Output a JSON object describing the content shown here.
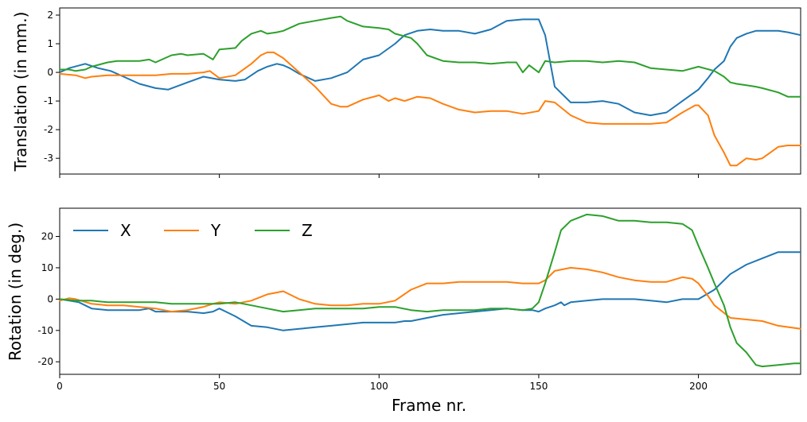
{
  "colors": {
    "X": "#1f77b4",
    "Y": "#ff7f0e",
    "Z": "#2ca02c"
  },
  "chart_data": [
    {
      "type": "line",
      "title": "",
      "xlabel": "",
      "ylabel": "Translation (in mm.)",
      "xlim": [
        0,
        232
      ],
      "ylim": [
        -3.55,
        2.25
      ],
      "xticks": [
        0,
        50,
        100,
        150,
        200
      ],
      "xtick_labels_visible": false,
      "yticks": [
        -3,
        -2,
        -1,
        0,
        1,
        2
      ],
      "grid": false,
      "legend": false,
      "series": [
        {
          "name": "X",
          "color": "#1f77b4",
          "x": [
            0,
            3,
            8,
            12,
            16,
            20,
            25,
            30,
            34,
            40,
            45,
            50,
            55,
            58,
            60,
            62,
            65,
            68,
            70,
            72,
            75,
            80,
            85,
            90,
            95,
            100,
            105,
            108,
            112,
            116,
            120,
            125,
            130,
            135,
            140,
            145,
            150,
            152,
            155,
            160,
            165,
            170,
            175,
            180,
            185,
            190,
            195,
            200,
            203,
            205,
            208,
            210,
            212,
            215,
            218,
            220,
            225,
            228,
            232
          ],
          "y": [
            0,
            0.15,
            0.3,
            0.15,
            0.05,
            -0.15,
            -0.4,
            -0.55,
            -0.6,
            -0.35,
            -0.15,
            -0.25,
            -0.3,
            -0.25,
            -0.1,
            0.05,
            0.2,
            0.3,
            0.25,
            0.15,
            -0.05,
            -0.3,
            -0.2,
            0.0,
            0.45,
            0.6,
            1.0,
            1.3,
            1.45,
            1.5,
            1.45,
            1.45,
            1.35,
            1.5,
            1.8,
            1.85,
            1.85,
            1.3,
            -0.5,
            -1.05,
            -1.05,
            -1.0,
            -1.1,
            -1.4,
            -1.5,
            -1.4,
            -1.0,
            -0.6,
            -0.2,
            0.1,
            0.4,
            0.9,
            1.2,
            1.35,
            1.45,
            1.45,
            1.45,
            1.4,
            1.3
          ]
        },
        {
          "name": "Y",
          "color": "#ff7f0e",
          "x": [
            0,
            5,
            8,
            10,
            15,
            20,
            25,
            30,
            35,
            40,
            45,
            47,
            50,
            55,
            60,
            63,
            65,
            67,
            70,
            75,
            80,
            85,
            88,
            90,
            95,
            100,
            103,
            105,
            108,
            112,
            116,
            120,
            125,
            130,
            135,
            140,
            145,
            150,
            152,
            155,
            160,
            165,
            170,
            175,
            180,
            185,
            190,
            195,
            199,
            200,
            203,
            205,
            208,
            210,
            212,
            215,
            218,
            220,
            225,
            228,
            232
          ],
          "y": [
            -0.05,
            -0.1,
            -0.2,
            -0.15,
            -0.1,
            -0.1,
            -0.1,
            -0.1,
            -0.05,
            -0.05,
            0.0,
            0.05,
            -0.2,
            -0.1,
            0.3,
            0.6,
            0.7,
            0.7,
            0.5,
            0.0,
            -0.5,
            -1.1,
            -1.2,
            -1.2,
            -0.95,
            -0.8,
            -1.0,
            -0.9,
            -1.0,
            -0.85,
            -0.9,
            -1.1,
            -1.3,
            -1.4,
            -1.35,
            -1.35,
            -1.45,
            -1.35,
            -1.0,
            -1.05,
            -1.5,
            -1.75,
            -1.8,
            -1.8,
            -1.8,
            -1.8,
            -1.75,
            -1.4,
            -1.15,
            -1.15,
            -1.5,
            -2.2,
            -2.8,
            -3.25,
            -3.25,
            -3.0,
            -3.05,
            -3.0,
            -2.6,
            -2.55,
            -2.55
          ]
        },
        {
          "name": "Z",
          "color": "#2ca02c",
          "x": [
            0,
            3,
            5,
            8,
            10,
            15,
            18,
            20,
            25,
            28,
            30,
            35,
            38,
            40,
            45,
            48,
            50,
            55,
            57,
            60,
            63,
            65,
            68,
            70,
            75,
            80,
            85,
            88,
            90,
            95,
            100,
            103,
            105,
            110,
            112,
            115,
            120,
            125,
            130,
            135,
            140,
            143,
            145,
            147,
            150,
            152,
            155,
            160,
            165,
            170,
            175,
            180,
            185,
            190,
            195,
            200,
            205,
            208,
            210,
            212,
            215,
            218,
            220,
            225,
            228,
            232
          ],
          "y": [
            0.1,
            0.1,
            0.05,
            0.1,
            0.2,
            0.35,
            0.4,
            0.4,
            0.4,
            0.45,
            0.35,
            0.6,
            0.65,
            0.6,
            0.65,
            0.45,
            0.8,
            0.85,
            1.1,
            1.35,
            1.45,
            1.35,
            1.4,
            1.45,
            1.7,
            1.8,
            1.9,
            1.95,
            1.8,
            1.6,
            1.55,
            1.5,
            1.35,
            1.2,
            1.0,
            0.6,
            0.4,
            0.35,
            0.35,
            0.3,
            0.35,
            0.35,
            0.0,
            0.25,
            0.0,
            0.4,
            0.35,
            0.4,
            0.4,
            0.35,
            0.4,
            0.35,
            0.15,
            0.1,
            0.05,
            0.2,
            0.05,
            -0.15,
            -0.35,
            -0.4,
            -0.45,
            -0.5,
            -0.55,
            -0.7,
            -0.85,
            -0.85
          ]
        }
      ]
    },
    {
      "type": "line",
      "title": "",
      "xlabel": "Frame nr.",
      "ylabel": "Rotation (in deg.)",
      "xlim": [
        0,
        232
      ],
      "ylim": [
        -24,
        29
      ],
      "xticks": [
        0,
        50,
        100,
        150,
        200
      ],
      "yticks": [
        -20,
        -10,
        0,
        10,
        20
      ],
      "grid": false,
      "legend": "top-left",
      "series": [
        {
          "name": "X",
          "color": "#1f77b4",
          "x": [
            0,
            3,
            6,
            10,
            15,
            20,
            25,
            28,
            30,
            35,
            40,
            45,
            48,
            50,
            52,
            55,
            60,
            65,
            70,
            75,
            80,
            85,
            90,
            95,
            100,
            105,
            108,
            110,
            115,
            120,
            125,
            130,
            135,
            140,
            145,
            148,
            150,
            152,
            155,
            157,
            158,
            160,
            165,
            170,
            175,
            180,
            185,
            190,
            195,
            200,
            205,
            210,
            215,
            220,
            225,
            230,
            232
          ],
          "y": [
            0,
            -0.5,
            -1,
            -3,
            -3.5,
            -3.5,
            -3.5,
            -3,
            -4,
            -4,
            -4,
            -4.5,
            -4,
            -3,
            -4,
            -5.5,
            -8.5,
            -9,
            -10,
            -9.5,
            -9,
            -8.5,
            -8,
            -7.5,
            -7.5,
            -7.5,
            -7,
            -7,
            -6,
            -5,
            -4.5,
            -4,
            -3.5,
            -3,
            -3.5,
            -3.5,
            -4,
            -3,
            -2,
            -1,
            -2,
            -1,
            -0.5,
            0,
            0,
            0,
            -0.5,
            -1,
            0,
            0,
            3,
            8,
            11,
            13,
            15,
            15,
            15
          ]
        },
        {
          "name": "Y",
          "color": "#ff7f0e",
          "x": [
            0,
            3,
            5,
            10,
            15,
            20,
            25,
            30,
            35,
            40,
            45,
            48,
            50,
            55,
            60,
            65,
            70,
            75,
            80,
            85,
            90,
            95,
            100,
            105,
            110,
            115,
            120,
            125,
            130,
            135,
            140,
            145,
            150,
            152,
            155,
            160,
            165,
            170,
            175,
            180,
            185,
            190,
            195,
            198,
            200,
            203,
            205,
            210,
            215,
            220,
            225,
            232
          ],
          "y": [
            -0.5,
            0.3,
            0,
            -1.5,
            -2,
            -2,
            -2.5,
            -3,
            -4,
            -3.5,
            -2.5,
            -1.5,
            -1,
            -1.5,
            -0.5,
            1.5,
            2.5,
            0,
            -1.5,
            -2,
            -2,
            -1.5,
            -1.5,
            -0.5,
            3,
            5,
            5,
            5.5,
            5.5,
            5.5,
            5.5,
            5,
            5,
            6,
            9,
            10,
            9.5,
            8.5,
            7,
            6,
            5.5,
            5.5,
            7,
            6.5,
            5,
            1,
            -2,
            -6,
            -6.5,
            -7,
            -8.5,
            -9.5
          ]
        },
        {
          "name": "Z",
          "color": "#2ca02c",
          "x": [
            0,
            5,
            10,
            15,
            20,
            25,
            30,
            35,
            40,
            45,
            50,
            55,
            60,
            65,
            70,
            75,
            80,
            85,
            90,
            95,
            100,
            105,
            110,
            115,
            120,
            125,
            130,
            135,
            140,
            145,
            148,
            150,
            152,
            155,
            157,
            160,
            165,
            170,
            175,
            180,
            185,
            190,
            195,
            198,
            200,
            203,
            205,
            208,
            210,
            212,
            215,
            218,
            220,
            225,
            230,
            232
          ],
          "y": [
            0,
            -0.5,
            -0.5,
            -1,
            -1,
            -1,
            -1,
            -1.5,
            -1.5,
            -1.5,
            -1.5,
            -1,
            -2,
            -3,
            -4,
            -3.5,
            -3,
            -3,
            -3,
            -3,
            -2.5,
            -2.5,
            -3.5,
            -4,
            -3.5,
            -3.5,
            -3.5,
            -3,
            -3,
            -3.5,
            -3,
            -1,
            5,
            15,
            22,
            25,
            27,
            26.5,
            25,
            25,
            24.5,
            24.5,
            24,
            22,
            17,
            10,
            5,
            -2,
            -9,
            -14,
            -17,
            -21,
            -21.5,
            -21,
            -20.5,
            -20.5
          ]
        }
      ]
    }
  ],
  "legend": {
    "items": [
      {
        "name": "X",
        "color": "#1f77b4"
      },
      {
        "name": "Y",
        "color": "#ff7f0e"
      },
      {
        "name": "Z",
        "color": "#2ca02c"
      }
    ]
  }
}
